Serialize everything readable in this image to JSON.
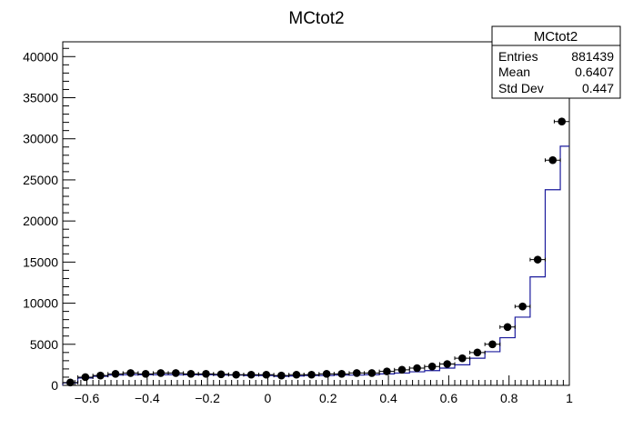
{
  "chart_data": {
    "type": "histogram",
    "title": "MCtot2",
    "xlabel": "",
    "ylabel": "",
    "xlim": [
      -0.68,
      1.0
    ],
    "ylim": [
      0,
      41800
    ],
    "x_ticks": [
      -0.6,
      -0.4,
      -0.2,
      0,
      0.2,
      0.4,
      0.6,
      0.8,
      1
    ],
    "x_tick_labels": [
      "−0.6",
      "−0.4",
      "−0.2",
      "0",
      "0.2",
      "0.4",
      "0.6",
      "0.8",
      "1"
    ],
    "y_ticks": [
      0,
      5000,
      10000,
      15000,
      20000,
      25000,
      30000,
      35000,
      40000
    ],
    "y_tick_labels": [
      "0",
      "5000",
      "10000",
      "15000",
      "20000",
      "25000",
      "30000",
      "35000",
      "40000"
    ],
    "bin_width": 0.05,
    "bin_centers": [
      -0.655,
      -0.605,
      -0.555,
      -0.505,
      -0.455,
      -0.405,
      -0.355,
      -0.305,
      -0.255,
      -0.205,
      -0.155,
      -0.105,
      -0.055,
      -0.005,
      0.045,
      0.095,
      0.145,
      0.195,
      0.245,
      0.295,
      0.345,
      0.395,
      0.445,
      0.495,
      0.545,
      0.595,
      0.645,
      0.695,
      0.745,
      0.795,
      0.845,
      0.895,
      0.945,
      0.975
    ],
    "series": [
      {
        "kind": "step",
        "color": "#1a1a9c",
        "values": [
          300,
          900,
          1100,
          1250,
          1300,
          1300,
          1300,
          1300,
          1300,
          1300,
          1250,
          1250,
          1200,
          1200,
          1100,
          1150,
          1200,
          1200,
          1250,
          1250,
          1300,
          1400,
          1500,
          1650,
          1800,
          2100,
          2500,
          3300,
          4100,
          5800,
          8300,
          13200,
          23800,
          29100
        ]
      },
      {
        "kind": "points",
        "color": "#000000",
        "values": [
          350,
          1000,
          1200,
          1400,
          1500,
          1400,
          1500,
          1500,
          1400,
          1400,
          1350,
          1300,
          1300,
          1300,
          1200,
          1300,
          1300,
          1400,
          1400,
          1500,
          1500,
          1700,
          1900,
          2100,
          2300,
          2600,
          3300,
          4000,
          5000,
          7100,
          9600,
          15300,
          27400,
          32100
        ]
      }
    ],
    "stats_box": {
      "title": "MCtot2",
      "rows": [
        {
          "label": "Entries",
          "value": "881439"
        },
        {
          "label": "Mean",
          "value": "0.6407"
        },
        {
          "label": "Std Dev",
          "value": "0.447"
        }
      ]
    }
  }
}
